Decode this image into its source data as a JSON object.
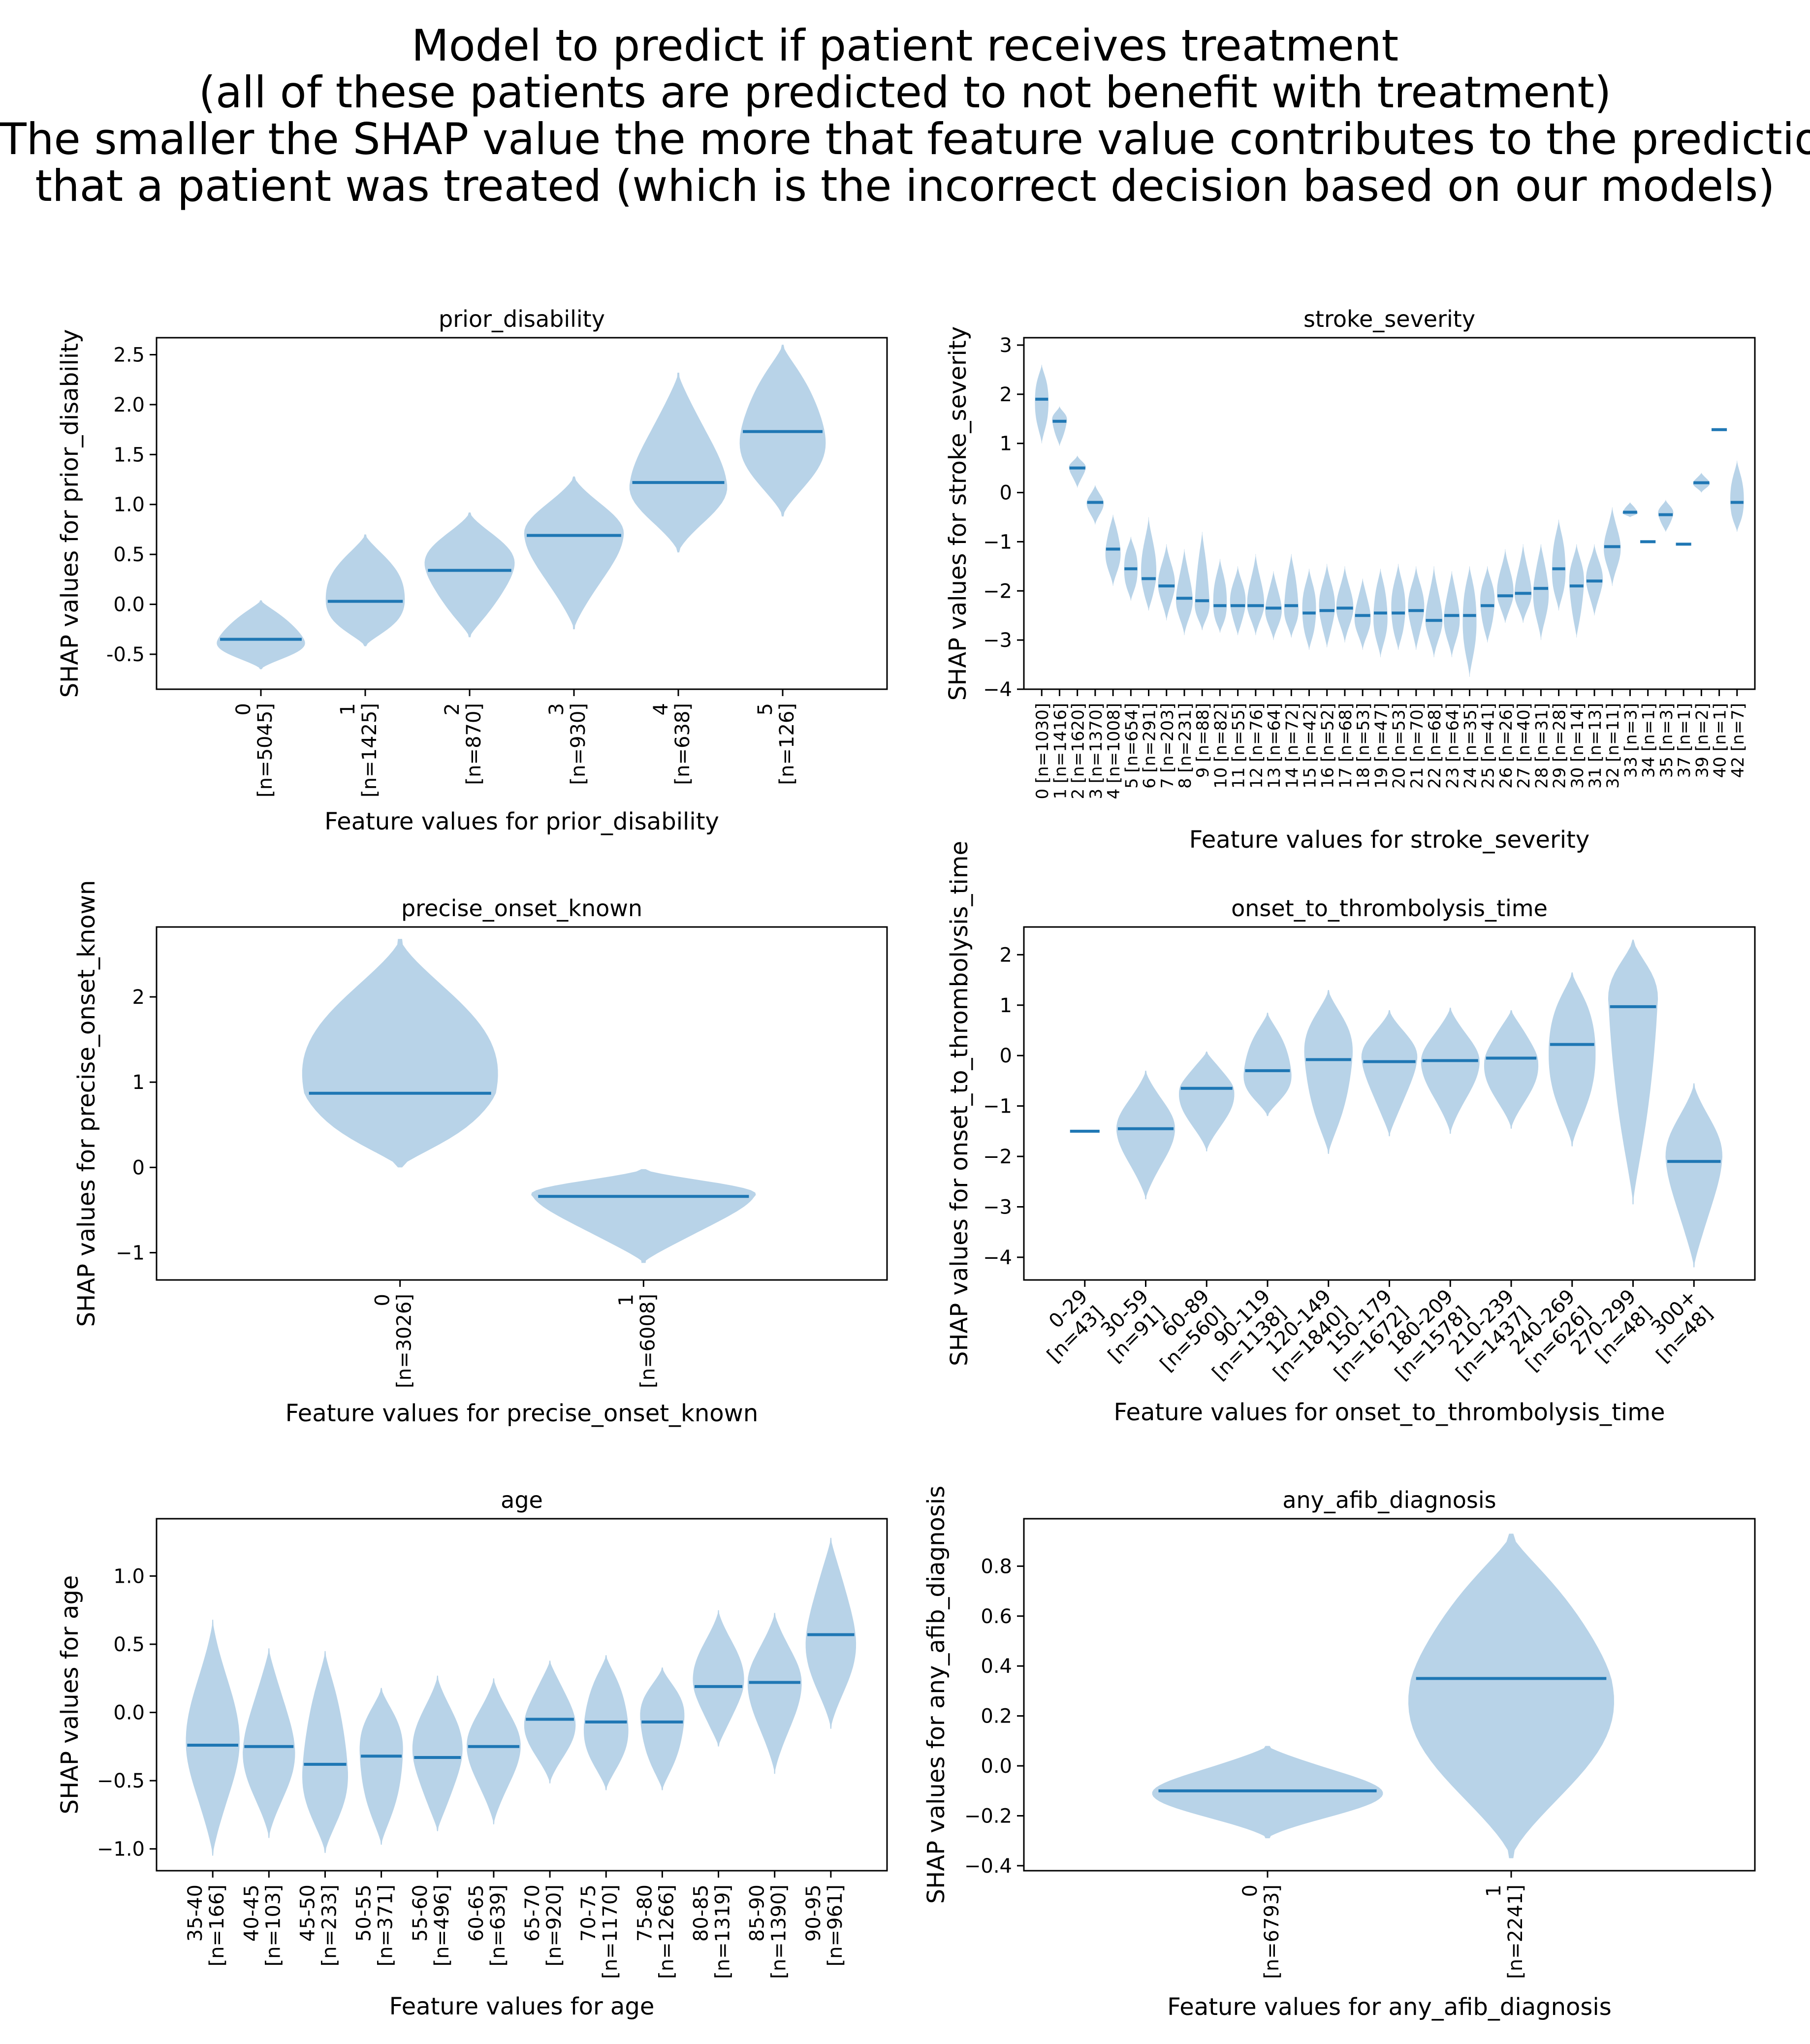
{
  "title_lines": [
    "Model to predict if patient receives treatment",
    "(all of these patients are predicted to not benefit with treatment)",
    "",
    "The smaller the SHAP value the more that feature value contributes to the prediction",
    "that a patient was treated (which is the incorrect decision based on our models)"
  ],
  "colors": {
    "violin_fill": "#b8d3e8",
    "median_line": "#1f77b4"
  },
  "chart_data": [
    {
      "type": "violin",
      "title": "prior_disability",
      "xlabel": "Feature values for prior_disability",
      "ylabel": "SHAP values for prior_disability",
      "ylim": [
        -0.85,
        2.67
      ],
      "yticks": [
        "-0.5",
        "0.0",
        "0.5",
        "1.0",
        "1.5",
        "2.0",
        "2.5"
      ],
      "tick_rotation": 90,
      "categories": [
        "0",
        "1",
        "2",
        "3",
        "4",
        "5"
      ],
      "counts": [
        "[n=5045]",
        "[n=1425]",
        "[n=870]",
        "[n=930]",
        "[n=638]",
        "[n=126]"
      ],
      "medians": [
        -0.35,
        0.03,
        0.34,
        0.69,
        1.22,
        1.73
      ],
      "mins": [
        -0.65,
        -0.42,
        -0.33,
        -0.25,
        0.52,
        0.88
      ],
      "maxs": [
        0.04,
        0.7,
        0.92,
        1.28,
        2.32,
        2.6
      ]
    },
    {
      "type": "violin",
      "title": "stroke_severity",
      "xlabel": "Feature values for stroke_severity",
      "ylabel": "SHAP values for stroke_severity",
      "ylim": [
        -4.0,
        3.15
      ],
      "yticks": [
        "−4",
        "−3",
        "−2",
        "−1",
        "0",
        "1",
        "2",
        "3"
      ],
      "tick_rotation": 90,
      "categories": [
        "0",
        "1",
        "2",
        "3",
        "4",
        "5",
        "6",
        "7",
        "8",
        "9",
        "10",
        "11",
        "12",
        "13",
        "14",
        "15",
        "16",
        "17",
        "18",
        "19",
        "20",
        "21",
        "22",
        "23",
        "24",
        "25",
        "26",
        "27",
        "28",
        "29",
        "30",
        "31",
        "32",
        "33",
        "34",
        "35",
        "37",
        "39",
        "40",
        "42"
      ],
      "counts": [
        "[n=1030]",
        "[n=1416]",
        "[n=1620]",
        "[n=1370]",
        "[n=1008]",
        "[n=654]",
        "[n=291]",
        "[n=203]",
        "[n=231]",
        "[n=88]",
        "[n=82]",
        "[n=55]",
        "[n=76]",
        "[n=64]",
        "[n=72]",
        "[n=42]",
        "[n=52]",
        "[n=68]",
        "[n=53]",
        "[n=47]",
        "[n=53]",
        "[n=70]",
        "[n=68]",
        "[n=64]",
        "[n=35]",
        "[n=41]",
        "[n=26]",
        "[n=40]",
        "[n=31]",
        "[n=28]",
        "[n=14]",
        "[n=13]",
        "[n=11]",
        "[n=3]",
        "[n=1]",
        "[n=3]",
        "[n=1]",
        "[n=2]",
        "[n=1]",
        "[n=7]"
      ],
      "medians": [
        1.9,
        1.45,
        0.5,
        -0.2,
        -1.15,
        -1.55,
        -1.75,
        -1.9,
        -2.15,
        -2.2,
        -2.3,
        -2.3,
        -2.3,
        -2.35,
        -2.3,
        -2.45,
        -2.4,
        -2.35,
        -2.5,
        -2.45,
        -2.45,
        -2.4,
        -2.6,
        -2.5,
        -2.5,
        -2.3,
        -2.1,
        -2.05,
        -1.95,
        -1.55,
        -1.9,
        -1.8,
        -1.1,
        -0.4,
        -1.0,
        -0.45,
        -1.05,
        0.2,
        1.28,
        -0.2
      ],
      "mins": [
        1.0,
        0.95,
        0.1,
        -0.65,
        -1.9,
        -2.2,
        -2.4,
        -2.6,
        -2.9,
        -2.8,
        -2.85,
        -2.9,
        -2.9,
        -3.0,
        -2.95,
        -3.2,
        -3.15,
        -3.05,
        -3.2,
        -3.35,
        -3.2,
        -3.2,
        -3.35,
        -3.35,
        -3.75,
        -3.05,
        -2.65,
        -2.65,
        -3.0,
        -2.4,
        -2.95,
        -2.5,
        -1.9,
        -0.5,
        -1.0,
        -0.8,
        -1.05,
        0.0,
        1.28,
        -0.8
      ],
      "maxs": [
        2.6,
        1.75,
        0.75,
        0.15,
        -0.45,
        -0.9,
        -0.5,
        -1.05,
        -1.15,
        -0.8,
        -1.35,
        -1.5,
        -1.25,
        -1.6,
        -1.25,
        -1.55,
        -1.45,
        -1.5,
        -1.75,
        -1.55,
        -1.45,
        -1.5,
        -1.5,
        -1.6,
        -1.5,
        -1.5,
        -1.15,
        -1.05,
        -1.05,
        -0.55,
        -1.05,
        -1.05,
        -0.3,
        -0.2,
        -1.0,
        -0.15,
        -1.05,
        0.4,
        1.28,
        0.65
      ]
    },
    {
      "type": "violin",
      "title": "precise_onset_known",
      "xlabel": "Feature values for precise_onset_known",
      "ylabel": "SHAP values for precise_onset_known",
      "ylim": [
        -1.32,
        2.82
      ],
      "yticks": [
        "−1",
        "0",
        "1",
        "2"
      ],
      "tick_rotation": 90,
      "categories": [
        "0",
        "1"
      ],
      "counts": [
        "[n=3026]",
        "[n=6008]"
      ],
      "medians": [
        0.87,
        -0.34
      ],
      "mins": [
        0.0,
        -1.12
      ],
      "maxs": [
        2.68,
        -0.02
      ]
    },
    {
      "type": "violin",
      "title": "onset_to_thrombolysis_time",
      "xlabel": "Feature values for onset_to_thrombolysis_time",
      "ylabel": "SHAP values for onset_to_thrombolysis_time",
      "ylim": [
        -4.45,
        2.55
      ],
      "yticks": [
        "−4",
        "−3",
        "−2",
        "−1",
        "0",
        "1",
        "2"
      ],
      "tick_rotation": 45,
      "categories": [
        "0-29",
        "30-59",
        "60-89",
        "90-119",
        "120-149",
        "150-179",
        "180-209",
        "210-239",
        "240-269",
        "270-299",
        "300+"
      ],
      "counts": [
        "[n=43]",
        "[n=91]",
        "[n=560]",
        "[n=1138]",
        "[n=1840]",
        "[n=1672]",
        "[n=1578]",
        "[n=1437]",
        "[n=626]",
        "[n=48]",
        "[n=48]"
      ],
      "medians": [
        -1.5,
        -1.45,
        -0.65,
        -0.3,
        -0.08,
        -0.12,
        -0.1,
        -0.05,
        0.22,
        0.97,
        -2.1
      ],
      "mins": [
        -1.5,
        -2.85,
        -1.9,
        -1.2,
        -1.95,
        -1.6,
        -1.55,
        -1.45,
        -1.8,
        -2.95,
        -4.2
      ],
      "maxs": [
        -1.5,
        -0.3,
        0.08,
        0.85,
        1.3,
        0.9,
        0.95,
        0.9,
        1.65,
        2.3,
        -0.55
      ]
    },
    {
      "type": "violin",
      "title": "age",
      "xlabel": "Feature values for age",
      "ylabel": "SHAP values for age",
      "ylim": [
        -1.16,
        1.42
      ],
      "yticks": [
        "−1.0",
        "−0.5",
        "0.0",
        "0.5",
        "1.0"
      ],
      "tick_rotation": 90,
      "categories": [
        "35-40",
        "40-45",
        "45-50",
        "50-55",
        "55-60",
        "60-65",
        "65-70",
        "70-75",
        "75-80",
        "80-85",
        "85-90",
        "90-95"
      ],
      "counts": [
        "[n=166]",
        "[n=103]",
        "[n=233]",
        "[n=371]",
        "[n=496]",
        "[n=639]",
        "[n=920]",
        "[n=1170]",
        "[n=1266]",
        "[n=1319]",
        "[n=1390]",
        "[n=961]"
      ],
      "medians": [
        -0.24,
        -0.25,
        -0.38,
        -0.32,
        -0.33,
        -0.25,
        -0.05,
        -0.07,
        -0.07,
        0.19,
        0.22,
        0.57
      ],
      "mins": [
        -1.05,
        -0.92,
        -1.03,
        -0.97,
        -0.87,
        -0.82,
        -0.52,
        -0.57,
        -0.57,
        -0.25,
        -0.45,
        -0.12
      ],
      "maxs": [
        0.68,
        0.47,
        0.45,
        0.18,
        0.27,
        0.25,
        0.38,
        0.42,
        0.33,
        0.75,
        0.73,
        1.28
      ]
    },
    {
      "type": "violin",
      "title": "any_afib_diagnosis",
      "xlabel": "Feature values for any_afib_diagnosis",
      "ylabel": "SHAP values for any_afib_diagnosis",
      "ylim": [
        -0.42,
        0.99
      ],
      "yticks": [
        "−0.4",
        "−0.2",
        "0.0",
        "0.2",
        "0.4",
        "0.6",
        "0.8"
      ],
      "tick_rotation": 90,
      "categories": [
        "0",
        "1"
      ],
      "counts": [
        "[n=6793]",
        "[n=2241]"
      ],
      "medians": [
        -0.1,
        0.35
      ],
      "mins": [
        -0.29,
        -0.37
      ],
      "maxs": [
        0.08,
        0.93
      ]
    }
  ]
}
